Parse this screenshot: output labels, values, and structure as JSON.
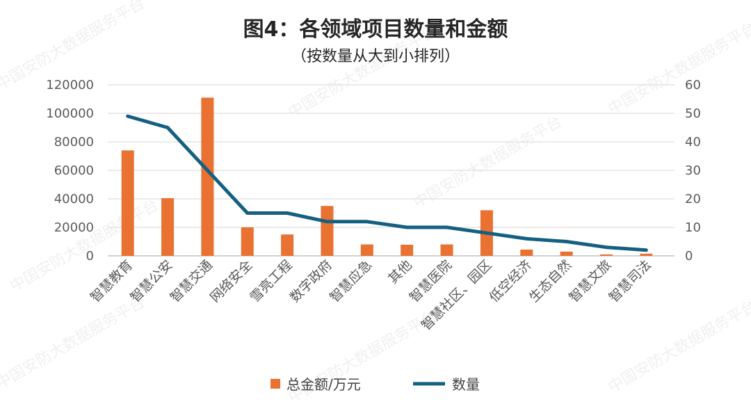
{
  "chart_data": {
    "type": "bar+line",
    "title": "图4：各领域项目数量和金额",
    "subtitle": "（按数量从大到小排列）",
    "categories": [
      "智慧教育",
      "智慧公安",
      "智慧交通",
      "网络安全",
      "雪亮工程",
      "数字政府",
      "智慧应急",
      "其他",
      "智慧医院",
      "智慧社区、园区",
      "低空经济",
      "生态自然",
      "智慧文旅",
      "智慧司法"
    ],
    "series": [
      {
        "name": "总金额/万元",
        "type": "bar",
        "axis": "left",
        "color": "#E97132",
        "values": [
          74000,
          40500,
          111000,
          20000,
          15000,
          35000,
          8000,
          7800,
          8000,
          32000,
          4400,
          3000,
          1000,
          1500
        ]
      },
      {
        "name": "数量",
        "type": "line",
        "axis": "right",
        "color": "#156082",
        "values": [
          49,
          45,
          30,
          15,
          15,
          12,
          12,
          10,
          10,
          8,
          6,
          5,
          3,
          2
        ]
      }
    ],
    "yleft": {
      "lim": [
        0,
        120000
      ],
      "ticks": [
        "0",
        "20000",
        "40000",
        "60000",
        "80000",
        "100000",
        "120000"
      ]
    },
    "yright": {
      "lim": [
        0,
        60
      ],
      "ticks": [
        "0",
        "10",
        "20",
        "30",
        "40",
        "50",
        "60"
      ]
    },
    "grid": true,
    "legend": "bottom"
  },
  "watermark": "中国安防大数据服务平台"
}
